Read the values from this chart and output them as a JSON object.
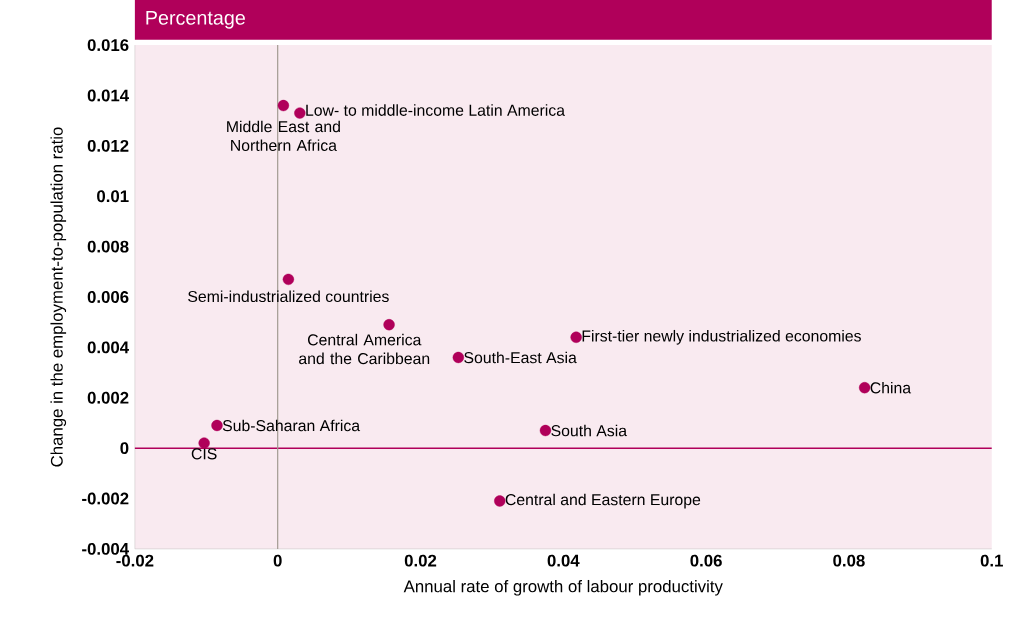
{
  "chart_data": {
    "type": "scatter",
    "title": "Percentage",
    "xlabel": "Annual rate of growth of labour productivity",
    "ylabel": "Change in the employment-to-population ratio",
    "x": [
      0.0031,
      0.0008,
      0.0015,
      0.0156,
      0.0253,
      0.0418,
      0.0822,
      0.0375,
      0.0311,
      -0.0085,
      -0.0103
    ],
    "series": [
      {
        "color": "#b0005a",
        "values": [
          0.0133,
          0.0136,
          0.0067,
          0.0049,
          0.0036,
          0.0044,
          0.0024,
          0.0007,
          -0.0021,
          0.0009,
          0.0002
        ]
      }
    ],
    "marker": "circle",
    "grid": false,
    "xlim": [
      -0.02,
      0.1
    ],
    "xticks": [
      -0.02,
      0,
      0.02,
      0.04,
      0.06,
      0.08,
      0.1
    ],
    "ylim": [
      -0.004,
      0.016
    ],
    "yticks": [
      -0.004,
      -0.002,
      0,
      0.002,
      0.004,
      0.006,
      0.008,
      0.01,
      0.012,
      0.014,
      0.016
    ],
    "ref_lines": [
      {
        "axis": "y",
        "value": 0,
        "color": "#b0005a"
      },
      {
        "axis": "x",
        "value": 0,
        "color": "#a09a90"
      }
    ],
    "annotations": [
      {
        "text": "Low- to middle-income Latin America",
        "x": 0.0031,
        "y": 0.0133
      },
      {
        "text": "Middle East and Northern Africa",
        "x": 0.0008,
        "y": 0.0136
      },
      {
        "text": "Semi-industrialized countries",
        "x": 0.0015,
        "y": 0.0067
      },
      {
        "text": "Central America and the Caribbean",
        "x": 0.0156,
        "y": 0.0049
      },
      {
        "text": "South-East Asia",
        "x": 0.0253,
        "y": 0.0036
      },
      {
        "text": "First-tier newly industrialized economies",
        "x": 0.0418,
        "y": 0.0044
      },
      {
        "text": "China",
        "x": 0.0822,
        "y": 0.0024
      },
      {
        "text": "South Asia",
        "x": 0.0375,
        "y": 0.0007
      },
      {
        "text": "Central and Eastern Europe",
        "x": 0.0311,
        "y": -0.0021
      },
      {
        "text": "Sub-Saharan Africa",
        "x": -0.0085,
        "y": 0.0009
      },
      {
        "text": "CIS",
        "x": -0.0103,
        "y": 0.0002
      }
    ]
  }
}
